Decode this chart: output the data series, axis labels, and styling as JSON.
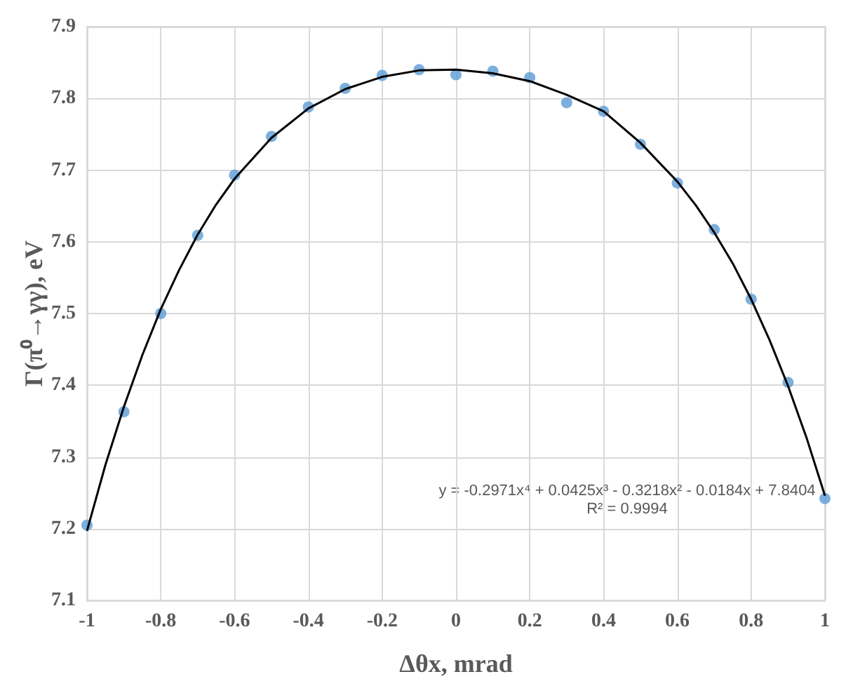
{
  "chart_data": {
    "type": "scatter",
    "xlabel": "Δθx, mrad",
    "ylabel": "Γ(π⁰→γγ), eV",
    "x": [
      -1,
      -0.9,
      -0.8,
      -0.7,
      -0.6,
      -0.5,
      -0.4,
      -0.3,
      -0.2,
      -0.1,
      0,
      0.1,
      0.2,
      0.3,
      0.4,
      0.5,
      0.6,
      0.7,
      0.8,
      0.9,
      1
    ],
    "series": [
      {
        "color": "#5b9bd5",
        "marker": "circle",
        "values": [
          7.205,
          7.363,
          7.5,
          7.609,
          7.693,
          7.747,
          7.788,
          7.814,
          7.832,
          7.84,
          7.833,
          7.838,
          7.829,
          7.794,
          7.782,
          7.736,
          7.682,
          7.617,
          7.52,
          7.404,
          7.242
        ]
      },
      {
        "type": "line",
        "color": "#000000",
        "marker": "none",
        "line_style": "solid",
        "x": [
          -1,
          -0.95,
          -0.9,
          -0.85,
          -0.8,
          -0.75,
          -0.7,
          -0.65,
          -0.6,
          -0.5,
          -0.4,
          -0.3,
          -0.2,
          -0.1,
          0,
          0.1,
          0.2,
          0.3,
          0.4,
          0.5,
          0.6,
          0.65,
          0.7,
          0.75,
          0.8,
          0.85,
          0.9,
          0.95,
          1
        ],
        "values": [
          7.197,
          7.289,
          7.37,
          7.442,
          7.506,
          7.561,
          7.61,
          7.652,
          7.688,
          7.745,
          7.786,
          7.813,
          7.83,
          7.839,
          7.84,
          7.835,
          7.824,
          7.805,
          7.782,
          7.738,
          7.684,
          7.651,
          7.613,
          7.57,
          7.52,
          7.463,
          7.399,
          7.327,
          7.246
        ]
      }
    ],
    "xlim": [
      -1,
      1
    ],
    "xticks": [
      -1,
      -0.8,
      -0.6,
      -0.4,
      -0.2,
      0,
      0.2,
      0.4,
      0.6,
      0.8,
      1
    ],
    "ylim": [
      7.1,
      7.9
    ],
    "yticks": [
      7.1,
      7.2,
      7.3,
      7.4,
      7.5,
      7.6,
      7.7,
      7.8,
      7.9
    ],
    "grid": true,
    "annotations": [
      "y = -0.2971x⁴ + 0.0425x³ - 0.3218x² - 0.0184x + 7.8404",
      "R² = 0.9994"
    ]
  }
}
